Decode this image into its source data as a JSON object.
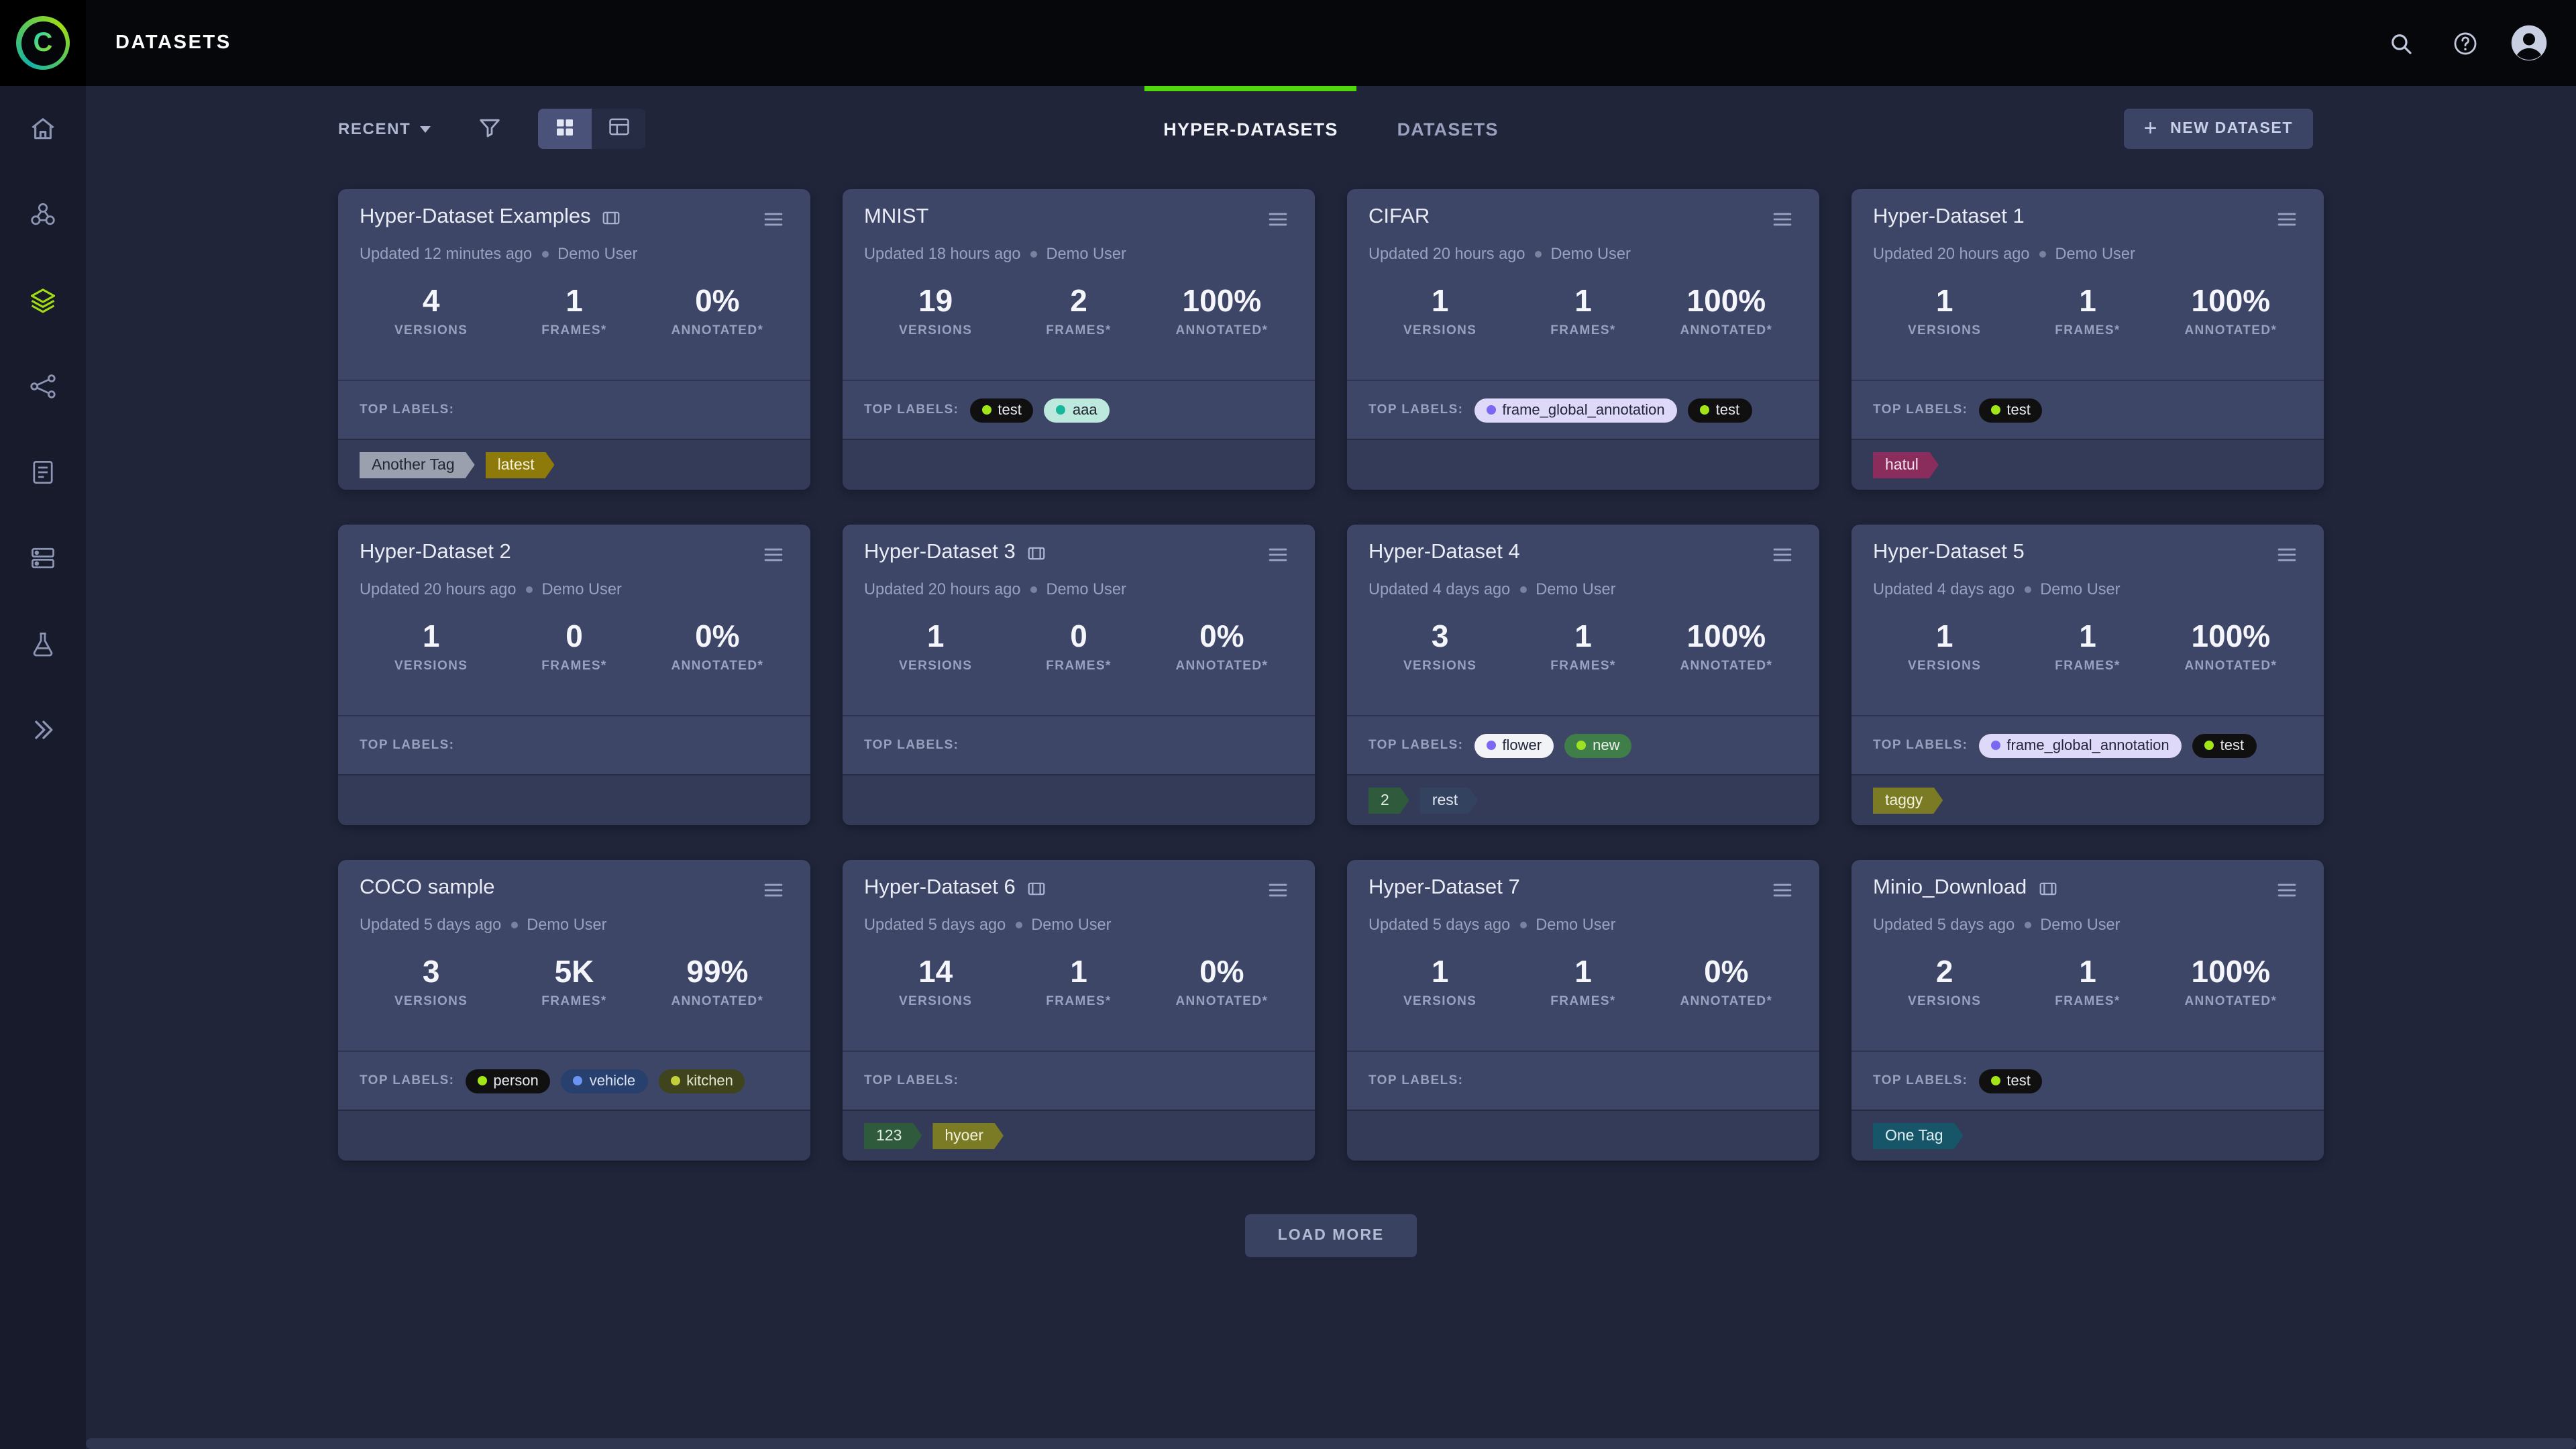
{
  "colors": {
    "bg": "#20253a",
    "topbar": "#06070b",
    "sidebar": "#171b2c",
    "card": "#3e4668",
    "cardfoot": "#343b58",
    "accent": "#52d60e",
    "accent-lime": "#9fdc12"
  },
  "topbar": {
    "logo_letter": "C",
    "title": "DATASETS"
  },
  "sidebar": {
    "items": [
      {
        "icon": "home-icon"
      },
      {
        "icon": "projects-icon"
      },
      {
        "icon": "datasets-icon",
        "active": true
      },
      {
        "icon": "pipelines-icon"
      },
      {
        "icon": "reports-icon"
      },
      {
        "icon": "queues-icon"
      },
      {
        "icon": "applications-icon"
      },
      {
        "icon": "expand-icon"
      }
    ]
  },
  "controls": {
    "sort_label": "RECENT",
    "tabs": [
      {
        "label": "HYPER-DATASETS",
        "active": true
      },
      {
        "label": "DATASETS",
        "active": false
      }
    ],
    "new_dataset_label": "NEW DATASET"
  },
  "captions": {
    "top_labels": "TOP LABELS:",
    "versions": "VERSIONS",
    "frames": "FRAMES*",
    "annotated": "ANNOTATED*"
  },
  "actions": {
    "load_more": "LOAD MORE"
  },
  "cards": [
    {
      "title": "Hyper-Dataset Examples",
      "frames_icon": true,
      "updated": "Updated 12 minutes ago",
      "user": "Demo User",
      "versions": "4",
      "frames": "1",
      "annotated": "0%",
      "labels": [],
      "tags": [
        {
          "text": "Another Tag",
          "bg": "#9aa0ad",
          "fg": "#232734"
        },
        {
          "text": "latest",
          "bg": "#8e7a0a",
          "fg": "#f5f1d8"
        }
      ]
    },
    {
      "title": "MNIST",
      "frames_icon": false,
      "updated": "Updated 18 hours ago",
      "user": "Demo User",
      "versions": "19",
      "frames": "2",
      "annotated": "100%",
      "labels": [
        {
          "text": "test",
          "bg": "#101010",
          "dot": "#a2e617",
          "fg": "#e8eaf0"
        },
        {
          "text": "aaa",
          "bg": "#bde8dd",
          "dot": "#18b79b",
          "fg": "#20242f"
        }
      ],
      "tags": []
    },
    {
      "title": "CIFAR",
      "frames_icon": false,
      "updated": "Updated 20 hours ago",
      "user": "Demo User",
      "versions": "1",
      "frames": "1",
      "annotated": "100%",
      "labels": [
        {
          "text": "frame_global_annotation",
          "bg": "#ded9f8",
          "dot": "#7a68f2",
          "fg": "#23263a"
        },
        {
          "text": "test",
          "bg": "#101010",
          "dot": "#a2e617",
          "fg": "#e8eaf0"
        }
      ],
      "tags": []
    },
    {
      "title": "Hyper-Dataset 1",
      "frames_icon": false,
      "updated": "Updated 20 hours ago",
      "user": "Demo User",
      "versions": "1",
      "frames": "1",
      "annotated": "100%",
      "labels": [
        {
          "text": "test",
          "bg": "#101010",
          "dot": "#a2e617",
          "fg": "#e8eaf0"
        }
      ],
      "tags": [
        {
          "text": "hatul",
          "bg": "#8a2d5c",
          "fg": "#f6e3ee"
        }
      ]
    },
    {
      "title": "Hyper-Dataset 2",
      "frames_icon": false,
      "updated": "Updated 20 hours ago",
      "user": "Demo User",
      "versions": "1",
      "frames": "0",
      "annotated": "0%",
      "labels": [],
      "tags": []
    },
    {
      "title": "Hyper-Dataset 3",
      "frames_icon": true,
      "updated": "Updated 20 hours ago",
      "user": "Demo User",
      "versions": "1",
      "frames": "0",
      "annotated": "0%",
      "labels": [],
      "tags": []
    },
    {
      "title": "Hyper-Dataset 4",
      "frames_icon": false,
      "updated": "Updated 4 days ago",
      "user": "Demo User",
      "versions": "3",
      "frames": "1",
      "annotated": "100%",
      "labels": [
        {
          "text": "flower",
          "bg": "#f2f3f7",
          "dot": "#7a68f2",
          "fg": "#23263a"
        },
        {
          "text": "new",
          "bg": "#3f7d49",
          "dot": "#9fe122",
          "fg": "#eef2ee"
        }
      ],
      "tags": [
        {
          "text": "2",
          "bg": "#2f5a3c",
          "fg": "#e2efe5"
        },
        {
          "text": "rest",
          "bg": "#33425f",
          "fg": "#e2e8f2"
        }
      ]
    },
    {
      "title": "Hyper-Dataset 5",
      "frames_icon": false,
      "updated": "Updated 4 days ago",
      "user": "Demo User",
      "versions": "1",
      "frames": "1",
      "annotated": "100%",
      "labels": [
        {
          "text": "frame_global_annotation",
          "bg": "#ded9f8",
          "dot": "#7a68f2",
          "fg": "#23263a"
        },
        {
          "text": "test",
          "bg": "#101010",
          "dot": "#a2e617",
          "fg": "#e8eaf0"
        }
      ],
      "tags": [
        {
          "text": "taggy",
          "bg": "#7b7b25",
          "fg": "#f2f2dc"
        }
      ]
    },
    {
      "title": "COCO sample",
      "frames_icon": false,
      "updated": "Updated 5 days ago",
      "user": "Demo User",
      "versions": "3",
      "frames": "5K",
      "annotated": "99%",
      "labels": [
        {
          "text": "person",
          "bg": "#101010",
          "dot": "#a2e617",
          "fg": "#e8eaf0"
        },
        {
          "text": "vehicle",
          "bg": "#28406e",
          "dot": "#6b93f2",
          "fg": "#dbe3f5"
        },
        {
          "text": "kitchen",
          "bg": "#3f441c",
          "dot": "#c3cf3a",
          "fg": "#e4e8d2"
        }
      ],
      "tags": []
    },
    {
      "title": "Hyper-Dataset 6",
      "frames_icon": true,
      "updated": "Updated 5 days ago",
      "user": "Demo User",
      "versions": "14",
      "frames": "1",
      "annotated": "0%",
      "labels": [],
      "tags": [
        {
          "text": "123",
          "bg": "#2f5a3c",
          "fg": "#e2efe5"
        },
        {
          "text": "hyoer",
          "bg": "#7b7b25",
          "fg": "#f2f2dc"
        }
      ]
    },
    {
      "title": "Hyper-Dataset 7",
      "frames_icon": false,
      "updated": "Updated 5 days ago",
      "user": "Demo User",
      "versions": "1",
      "frames": "1",
      "annotated": "0%",
      "labels": [],
      "tags": []
    },
    {
      "title": "Minio_Download",
      "frames_icon": true,
      "updated": "Updated 5 days ago",
      "user": "Demo User",
      "versions": "2",
      "frames": "1",
      "annotated": "100%",
      "labels": [
        {
          "text": "test",
          "bg": "#101010",
          "dot": "#a2e617",
          "fg": "#e8eaf0"
        }
      ],
      "tags": [
        {
          "text": "One Tag",
          "bg": "#175668",
          "fg": "#dff0f5"
        }
      ]
    }
  ]
}
